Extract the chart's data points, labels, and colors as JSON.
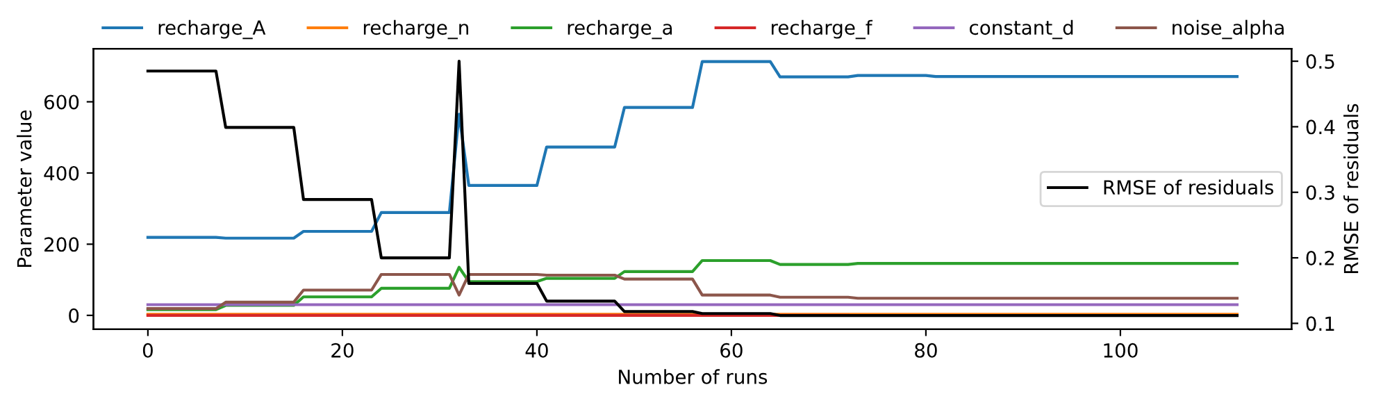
{
  "chart_data": {
    "type": "line",
    "xlabel": "Number of runs",
    "ylabel": "Parameter value",
    "y2label": "RMSE of residuals",
    "x": [
      0,
      7,
      8,
      15,
      16,
      23,
      24,
      31,
      32,
      33,
      40,
      41,
      48,
      49,
      56,
      57,
      64,
      65,
      72,
      73,
      80,
      81,
      112
    ],
    "series": [
      {
        "name": "recharge_A",
        "color": "#1f77b4",
        "values": [
          219,
          219,
          217,
          217,
          236,
          236,
          289,
          289,
          565,
          365,
          365,
          473,
          473,
          584,
          584,
          713,
          713,
          670,
          670,
          674,
          674,
          671,
          671
        ]
      },
      {
        "name": "recharge_n",
        "color": "#ff7f0e",
        "values": [
          3,
          3,
          3,
          3,
          3,
          3,
          3,
          3,
          3,
          3,
          3,
          3,
          3,
          3,
          3,
          3,
          3,
          3,
          3,
          3,
          3,
          3,
          3
        ]
      },
      {
        "name": "recharge_a",
        "color": "#2ca02c",
        "values": [
          16,
          16,
          28,
          28,
          52,
          52,
          76,
          76,
          135,
          95,
          95,
          104,
          104,
          123,
          123,
          154,
          154,
          143,
          143,
          146,
          146,
          146,
          146
        ]
      },
      {
        "name": "recharge_f",
        "color": "#d62728",
        "values": [
          0,
          0,
          0,
          0,
          0,
          0,
          0,
          0,
          0,
          0,
          0,
          0,
          0,
          0,
          0,
          0,
          0,
          0,
          0,
          null,
          null,
          null,
          null
        ]
      },
      {
        "name": "constant_d",
        "color": "#9467bd",
        "values": [
          30,
          30,
          30,
          30,
          30,
          30,
          30,
          30,
          30,
          30,
          30,
          30,
          30,
          30,
          30,
          30,
          30,
          30,
          30,
          30,
          30,
          30,
          30
        ]
      },
      {
        "name": "noise_alpha",
        "color": "#8c564b",
        "values": [
          19,
          19,
          37,
          37,
          71,
          71,
          115,
          115,
          57,
          115,
          115,
          113,
          113,
          102,
          102,
          57,
          57,
          51,
          51,
          48,
          48,
          48,
          48
        ]
      },
      {
        "name": "RMSE of residuals",
        "color": "#000000",
        "axis": "y2",
        "values": [
          0.485,
          0.485,
          0.399,
          0.399,
          0.289,
          0.289,
          0.2,
          0.2,
          0.5,
          0.161,
          0.161,
          0.134,
          0.134,
          0.118,
          0.118,
          0.115,
          0.115,
          0.112,
          0.112,
          0.112,
          0.112,
          0.112,
          0.112
        ]
      }
    ],
    "xlim": [
      -5.6,
      117.6
    ],
    "xticks": [
      0,
      20,
      40,
      60,
      80,
      100
    ],
    "ylim": [
      -39,
      749
    ],
    "yticks": [
      0,
      200,
      400,
      600
    ],
    "y2lim": [
      0.091,
      0.519
    ],
    "y2ticks": [
      0.1,
      0.2,
      0.3,
      0.4,
      0.5
    ],
    "legend": "top",
    "grid": false
  }
}
